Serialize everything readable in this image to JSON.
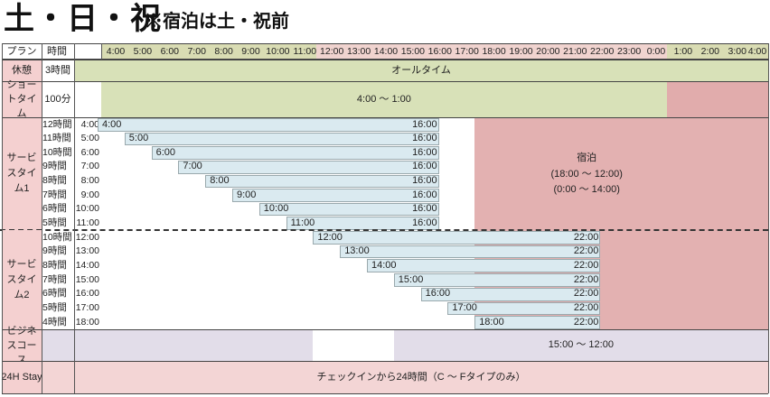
{
  "title": "土・日・祝",
  "subtitle": "※宿泊は土・祝前",
  "header": {
    "plan": "プラン",
    "time": "時間",
    "hours": [
      "4:00",
      "5:00",
      "6:00",
      "7:00",
      "8:00",
      "9:00",
      "10:00",
      "11:00",
      "12:00",
      "13:00",
      "14:00",
      "15:00",
      "16:00",
      "17:00",
      "18:00",
      "19:00",
      "20:00",
      "21:00",
      "22:00",
      "23:00",
      "0:00",
      "1:00",
      "2:00",
      "3:00",
      "4:00"
    ]
  },
  "colors": {
    "header_green": "#d9dcb3",
    "header_pink": "#f0d3cf",
    "rest_green": "#d8e1b8",
    "short_pink": "#e1acac",
    "stay_pink": "#e3b1b1",
    "bar_blue": "#daeaf0",
    "business_lavender": "#e2dde9",
    "h24_pink": "#f3d5d5",
    "row_label_pink": "#f4d0d0"
  },
  "rest": {
    "label": "休憩",
    "duration": "3時間",
    "text": "オールタイム"
  },
  "short": {
    "label": "ショートタイム",
    "duration": "100分",
    "text": "4:00 ～ 1:00"
  },
  "service1": {
    "label": "サービスタイム1",
    "stay_label": "宿泊",
    "stay_line1": "(18:00 ～ 12:00)",
    "stay_line2": "(0:00 ～ 14:00)",
    "rows": [
      {
        "hours": "12時間",
        "start": "4:00",
        "end": "16:00"
      },
      {
        "hours": "11時間",
        "start": "5:00",
        "end": "16:00"
      },
      {
        "hours": "10時間",
        "start": "6:00",
        "end": "16:00"
      },
      {
        "hours": "9時間",
        "start": "7:00",
        "end": "16:00"
      },
      {
        "hours": "8時間",
        "start": "8:00",
        "end": "16:00"
      },
      {
        "hours": "7時間",
        "start": "9:00",
        "end": "16:00"
      },
      {
        "hours": "6時間",
        "start": "10:00",
        "end": "16:00"
      },
      {
        "hours": "5時間",
        "start": "11:00",
        "end": "16:00"
      }
    ]
  },
  "service2": {
    "label": "サービスタイム2",
    "rows": [
      {
        "hours": "10時間",
        "start": "12:00",
        "end": "22:00"
      },
      {
        "hours": "9時間",
        "start": "13:00",
        "end": "22:00"
      },
      {
        "hours": "8時間",
        "start": "14:00",
        "end": "22:00"
      },
      {
        "hours": "7時間",
        "start": "15:00",
        "end": "22:00"
      },
      {
        "hours": "6時間",
        "start": "16:00",
        "end": "22:00"
      },
      {
        "hours": "5時間",
        "start": "17:00",
        "end": "22:00"
      },
      {
        "hours": "4時間",
        "start": "18:00",
        "end": "22:00"
      }
    ]
  },
  "business": {
    "label": "ビジネスコース",
    "text": "15:00 ～ 12:00"
  },
  "h24": {
    "label": "24H Stay",
    "text": "チェックインから24時間（C ～ Fタイプのみ）"
  }
}
